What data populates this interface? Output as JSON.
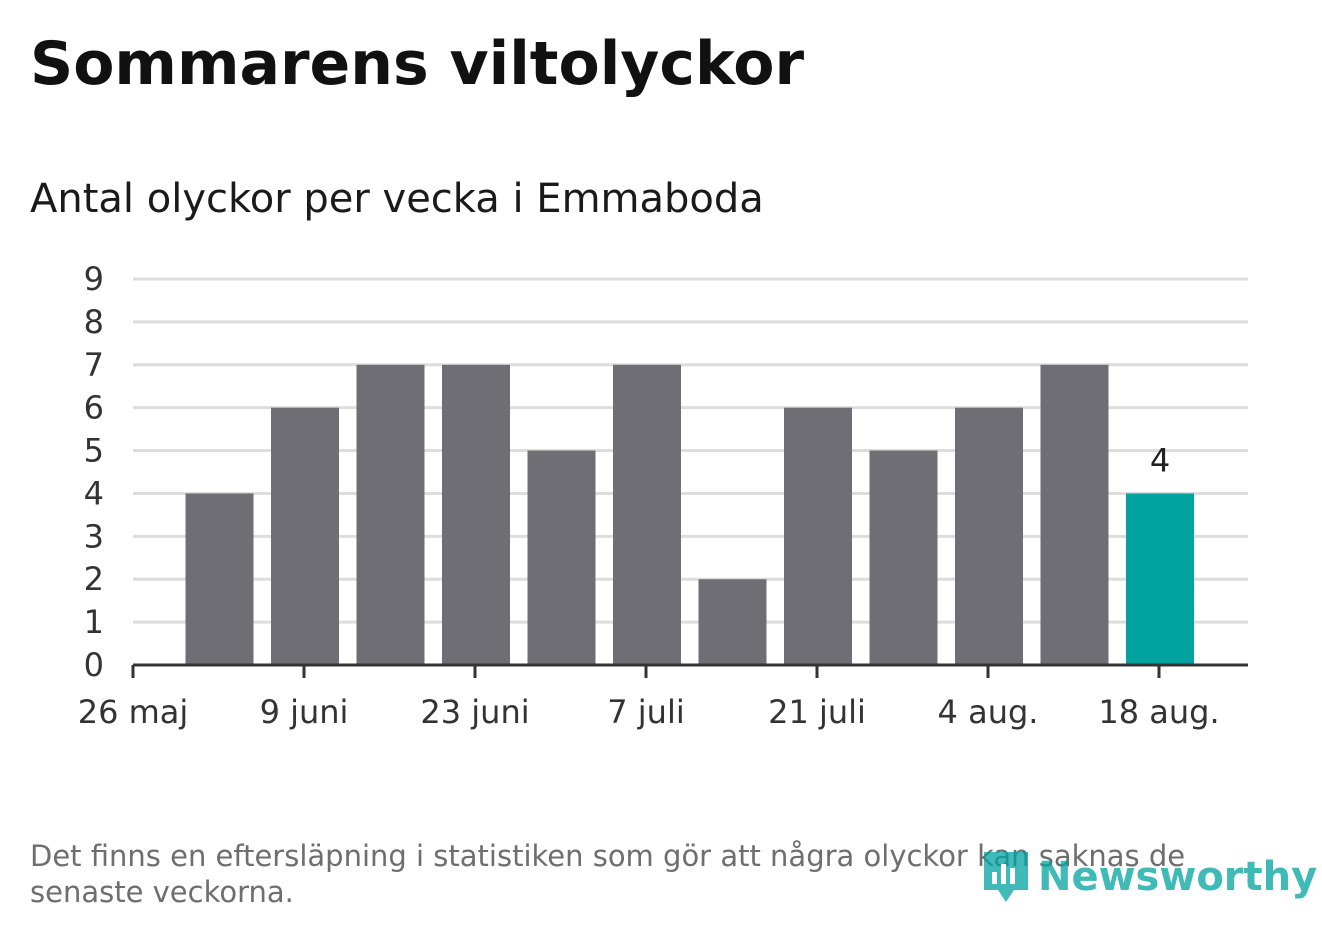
{
  "title": "Sommarens viltolyckor",
  "subtitle": "Antal olyckor per vecka i Emmaboda",
  "footnote": "Det finns en eftersläpning i statistiken som gör att några olyckor kan saknas de senaste veckorna.",
  "brand": "Newsworthy",
  "colors": {
    "bar": "#6f6e74",
    "highlight": "#00a3a0",
    "grid": "#dddddd",
    "axis": "#333333",
    "brand": "#00a3a0"
  },
  "icons": [
    "newsworthy-logo-icon"
  ],
  "chart_data": {
    "type": "bar",
    "x_tick_labels": [
      "26 maj",
      "9 juni",
      "23 juni",
      "7 juli",
      "21 juli",
      "4 aug.",
      "18 aug."
    ],
    "values": [
      4,
      6,
      7,
      7,
      5,
      7,
      2,
      6,
      5,
      6,
      7,
      4
    ],
    "highlight_index": 11,
    "highlight_label": "4",
    "ylim": [
      0,
      9
    ],
    "y_ticks": [
      0,
      1,
      2,
      3,
      4,
      5,
      6,
      7,
      8,
      9
    ],
    "grid": true
  }
}
